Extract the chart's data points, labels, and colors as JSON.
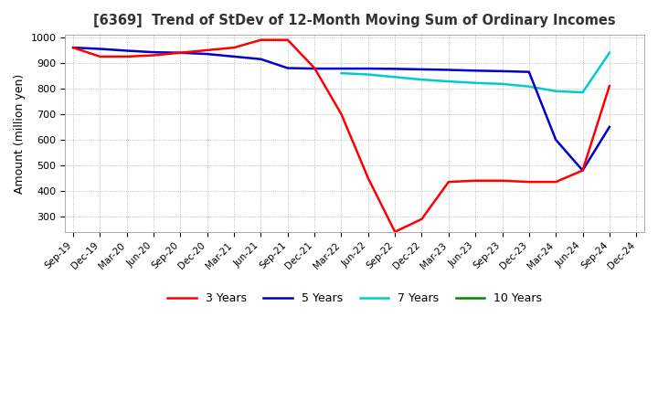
{
  "title": "[6369]  Trend of StDev of 12-Month Moving Sum of Ordinary Incomes",
  "ylabel": "Amount (million yen)",
  "ylim": [
    240,
    1010
  ],
  "yticks": [
    300,
    400,
    500,
    600,
    700,
    800,
    900,
    1000
  ],
  "background_color": "#ffffff",
  "grid_color": "#aaaaaa",
  "legend_labels": [
    "3 Years",
    "5 Years",
    "7 Years",
    "10 Years"
  ],
  "legend_colors": [
    "#ff0000",
    "#0000cc",
    "#00cccc",
    "#008800"
  ],
  "x_labels": [
    "Sep-19",
    "Dec-19",
    "Mar-20",
    "Jun-20",
    "Sep-20",
    "Dec-20",
    "Mar-21",
    "Jun-21",
    "Sep-21",
    "Dec-21",
    "Mar-22",
    "Jun-22",
    "Sep-22",
    "Dec-22",
    "Mar-23",
    "Jun-23",
    "Sep-23",
    "Dec-23",
    "Mar-24",
    "Jun-24",
    "Sep-24",
    "Dec-24"
  ],
  "series_3y": [
    960,
    925,
    925,
    930,
    940,
    950,
    960,
    990,
    990,
    880,
    700,
    450,
    240,
    290,
    435,
    440,
    440,
    435,
    435,
    480,
    810,
    null
  ],
  "series_5y": [
    960,
    955,
    948,
    942,
    940,
    935,
    925,
    915,
    880,
    878,
    878,
    878,
    877,
    875,
    873,
    870,
    868,
    865,
    600,
    480,
    650,
    null
  ],
  "series_7y": [
    null,
    null,
    null,
    null,
    null,
    null,
    null,
    null,
    null,
    null,
    860,
    855,
    845,
    835,
    828,
    822,
    818,
    808,
    790,
    785,
    940,
    null
  ],
  "series_10y": [
    null,
    null,
    null,
    null,
    null,
    null,
    null,
    null,
    null,
    null,
    null,
    null,
    null,
    null,
    null,
    null,
    null,
    null,
    null,
    null,
    null,
    null
  ]
}
